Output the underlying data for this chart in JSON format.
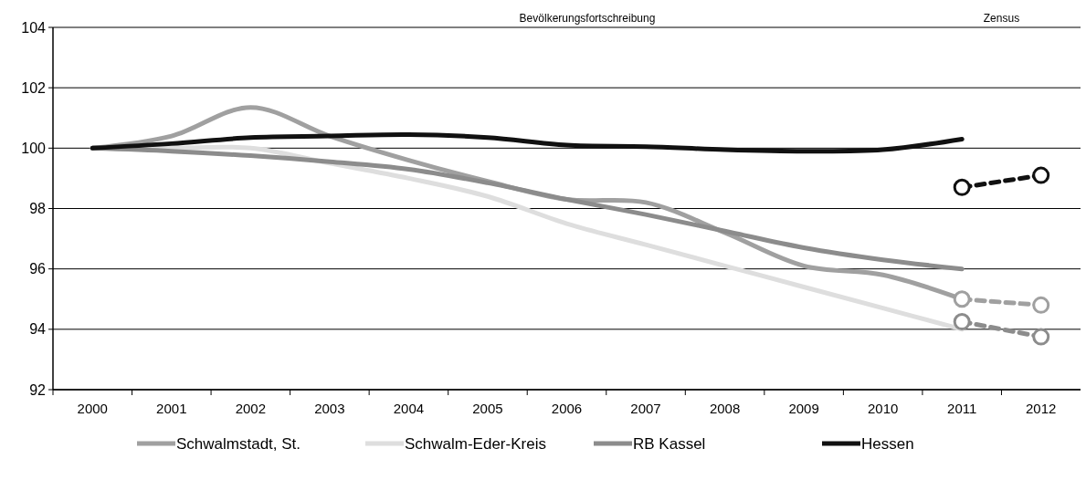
{
  "chart_data": {
    "type": "line",
    "annotations": [
      "Bevölkerungsfortschreibung",
      "Zensus"
    ],
    "categories": [
      "2000",
      "2001",
      "2002",
      "2003",
      "2004",
      "2005",
      "2006",
      "2007",
      "2008",
      "2009",
      "2010",
      "2011",
      "2012"
    ],
    "ylim": [
      92,
      104
    ],
    "yticks": [
      92,
      94,
      96,
      98,
      100,
      102,
      104
    ],
    "grid": "y",
    "legend": "bottom",
    "line_style": "solid",
    "marker": "none",
    "series": [
      {
        "name": "Schwalmstadt, St.",
        "color": "#a0a0a0",
        "values": [
          100,
          100.4,
          101.35,
          100.4,
          99.6,
          98.9,
          98.3,
          98.2,
          97.2,
          96.1,
          95.8,
          95.0,
          null
        ]
      },
      {
        "name": "Schwalm-Eder-Kreis",
        "color": "#dedede",
        "values": [
          100,
          100,
          100,
          99.5,
          99.0,
          98.4,
          97.5,
          96.8,
          96.1,
          95.4,
          94.7,
          94.0,
          null
        ]
      },
      {
        "name": "RB Kassel",
        "color": "#8c8c8c",
        "values": [
          100,
          99.9,
          99.75,
          99.55,
          99.3,
          98.85,
          98.3,
          97.8,
          97.25,
          96.7,
          96.3,
          96.0,
          null
        ]
      },
      {
        "name": "Hessen",
        "color": "#111111",
        "values": [
          100,
          100.15,
          100.35,
          100.4,
          100.45,
          100.35,
          100.1,
          100.05,
          99.95,
          99.9,
          99.95,
          100.3,
          null
        ]
      },
      {
        "color": "#a0a0a0",
        "line_style": "dashed",
        "marker": "circle",
        "values": [
          null,
          null,
          null,
          null,
          null,
          null,
          null,
          null,
          null,
          null,
          null,
          95.0,
          94.8
        ]
      },
      {
        "color": "#8c8c8c",
        "line_style": "dashed",
        "marker": "circle",
        "values": [
          null,
          null,
          null,
          null,
          null,
          null,
          null,
          null,
          null,
          null,
          null,
          94.25,
          93.75
        ]
      },
      {
        "color": "#111111",
        "line_style": "dashed",
        "marker": "circle",
        "values": [
          null,
          null,
          null,
          null,
          null,
          null,
          null,
          null,
          null,
          null,
          null,
          98.7,
          99.1
        ]
      }
    ]
  }
}
